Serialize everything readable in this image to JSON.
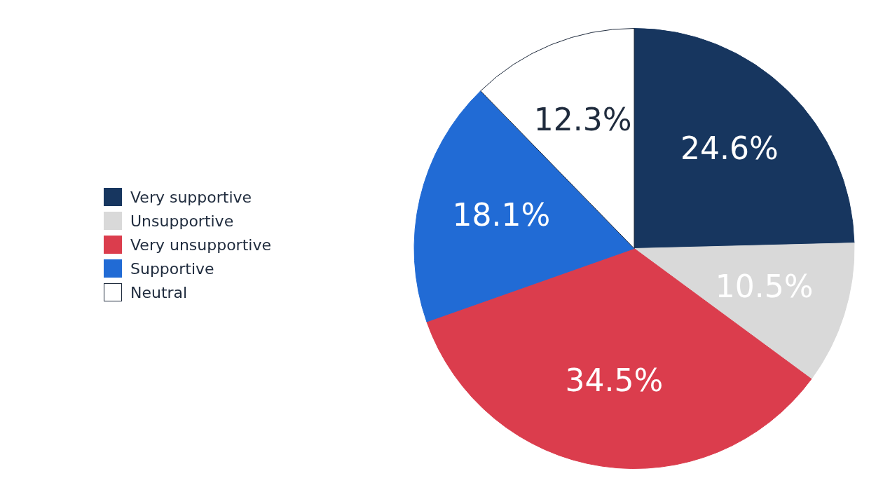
{
  "chart_data": {
    "type": "pie",
    "categories": [
      "Very supportive",
      "Unsupportive",
      "Very unsupportive",
      "Supportive",
      "Neutral"
    ],
    "values": [
      24.6,
      10.5,
      34.5,
      18.1,
      12.3
    ],
    "colors": [
      "#17365f",
      "#d9d9d9",
      "#db3d4d",
      "#216bd5",
      "#ffffff"
    ],
    "value_labels": [
      "24.6%",
      "10.5%",
      "34.5%",
      "18.1%",
      "12.3%"
    ],
    "legend": "left"
  }
}
